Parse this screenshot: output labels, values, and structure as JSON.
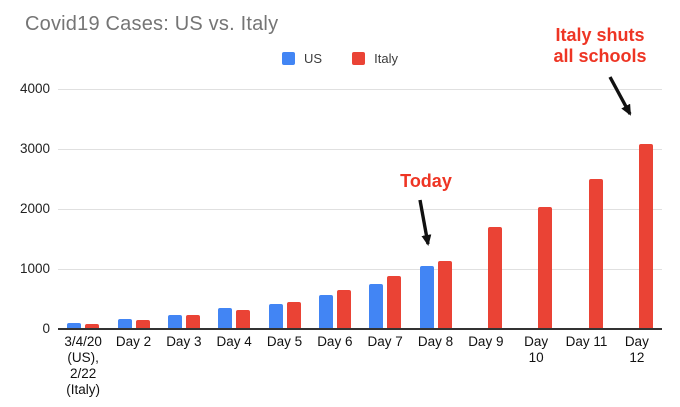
{
  "chart_data": {
    "type": "bar",
    "title": "Covid19 Cases: US vs. Italy",
    "categories": [
      "3/4/20 (US), 2/22 (Italy)",
      "Day 2",
      "Day 3",
      "Day 4",
      "Day 5",
      "Day 6",
      "Day 7",
      "Day 8",
      "Day 9",
      "Day 10",
      "Day 11",
      "Day 12"
    ],
    "category_label_lines": [
      [
        "3/4/20",
        "(US),",
        "2/22",
        "(Italy)"
      ],
      [
        "Day 2"
      ],
      [
        "Day 3"
      ],
      [
        "Day 4"
      ],
      [
        "Day 5"
      ],
      [
        "Day 6"
      ],
      [
        "Day 7"
      ],
      [
        "Day 8"
      ],
      [
        "Day 9"
      ],
      [
        "Day",
        "10"
      ],
      [
        "Day 11"
      ],
      [
        "Day",
        "12"
      ]
    ],
    "series": [
      {
        "name": "US",
        "color": "#4285F4",
        "values": [
          100,
          165,
          235,
          345,
          420,
          565,
          750,
          1050,
          null,
          null,
          null,
          null
        ]
      },
      {
        "name": "Italy",
        "color": "#EA4335",
        "values": [
          79,
          155,
          229,
          322,
          453,
          655,
          888,
          1128,
          1694,
          2036,
          2502,
          3089
        ]
      }
    ],
    "xlabel": "",
    "ylabel": "",
    "ylim": [
      0,
      4000
    ],
    "yticks": [
      0,
      1000,
      2000,
      3000,
      4000
    ],
    "grid": true,
    "legend_position": "top",
    "annotations": [
      {
        "id": "today",
        "text": "Today",
        "target": "Day 8"
      },
      {
        "id": "schools",
        "text": "Italy shuts\nall schools",
        "target": "Day 12"
      }
    ],
    "colors": {
      "us": "#4285F4",
      "italy": "#EA4335",
      "annotation": "#EE3524",
      "title": "#757575",
      "gridline": "#E0E0E0",
      "axis_line": "#333333",
      "arrow": "#111111"
    }
  }
}
